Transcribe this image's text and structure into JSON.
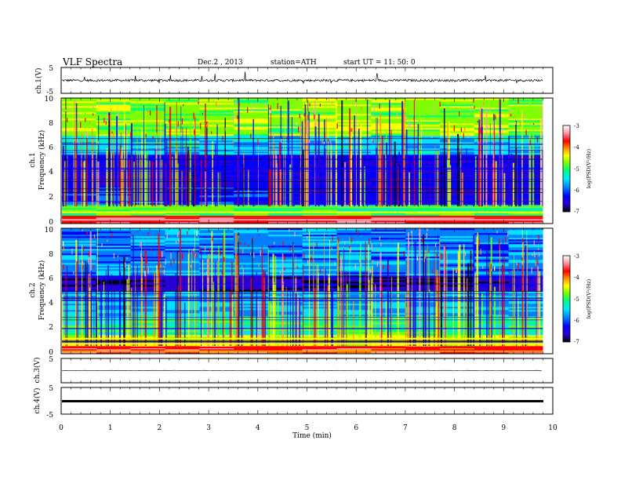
{
  "header": {
    "title": "VLF  Spectra",
    "date": "Dec.2  , 2013",
    "station": "station=ATH",
    "start_ut": "start  UT  =    11: 50: 0"
  },
  "colors": {
    "waveform": "#000000",
    "axis": "#000000",
    "colormap": [
      "#000000",
      "#2a00d5",
      "#0000ff",
      "#0080ff",
      "#00e5ff",
      "#00ff80",
      "#7dff00",
      "#ffff00",
      "#ff9900",
      "#ff0000",
      "#ff9fb0",
      "#ffffff"
    ]
  },
  "chart_data": [
    {
      "type": "line",
      "name": "ch1-waveform",
      "ylabel": "ch.1(V)",
      "ylim": [
        -5,
        5
      ],
      "yticks": [
        "5",
        "-5"
      ],
      "xlim": [
        0,
        10
      ],
      "amplitude_range": [
        -1.0,
        1.0
      ]
    },
    {
      "type": "heatmap",
      "name": "ch1-spectrogram",
      "ylabel_channel": "ch.1",
      "ylabel": "Frequency  (kHz)",
      "ylim": [
        0,
        10
      ],
      "yticks": [
        "0",
        "2",
        "4",
        "6",
        "8",
        "10"
      ],
      "xlim": [
        0,
        9.8
      ],
      "colorbar": {
        "label": "log(PSD(V²/Hz)",
        "range": [
          -7,
          -3
        ],
        "ticks": [
          "-3",
          "-4",
          "-5",
          "-6",
          "-7"
        ]
      }
    },
    {
      "type": "heatmap",
      "name": "ch2-spectrogram",
      "ylabel_channel": "ch.2",
      "ylabel": "Frequency  (kHz)",
      "ylim": [
        0,
        10
      ],
      "yticks": [
        "0",
        "2",
        "4",
        "6",
        "8",
        "10"
      ],
      "xlim": [
        0,
        9.8
      ],
      "colorbar": {
        "label": "log(PSD(V²/Hz)",
        "range": [
          -7,
          -3
        ],
        "ticks": [
          "-3",
          "-4",
          "-5",
          "-6",
          "-7"
        ]
      }
    },
    {
      "type": "line",
      "name": "ch3-waveform",
      "ylabel": "ch.3(V)",
      "ylim": [
        -5,
        5
      ],
      "yticks": [
        "5"
      ],
      "xlim": [
        0,
        10
      ],
      "level": 0
    },
    {
      "type": "line",
      "name": "ch4-waveform",
      "ylabel": "ch.4(V)",
      "ylim": [
        -5,
        5
      ],
      "yticks": [
        "5",
        "-5"
      ],
      "xlim": [
        0,
        10
      ],
      "level": -1
    }
  ],
  "time_axis": {
    "label": "Time  (min)",
    "ticks": [
      "0",
      "1",
      "2",
      "3",
      "4",
      "5",
      "6",
      "7",
      "8",
      "9",
      "10"
    ]
  }
}
